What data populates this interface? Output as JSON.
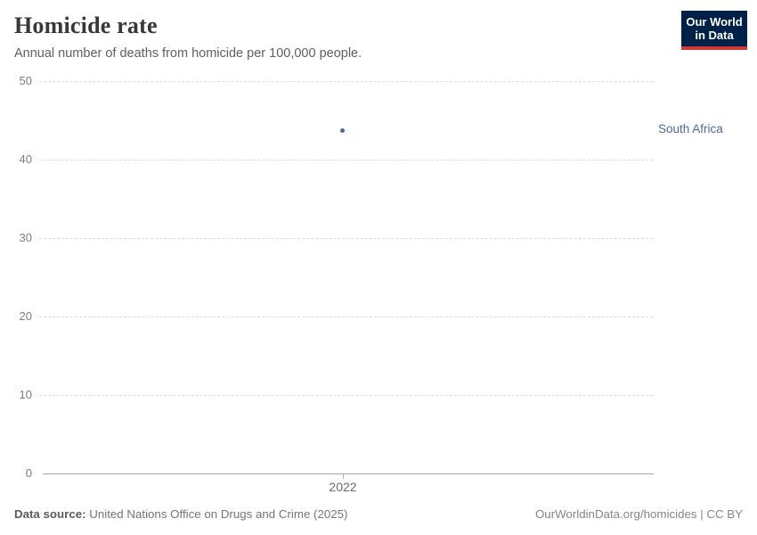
{
  "header": {
    "title": "Homicide rate",
    "subtitle": "Annual number of deaths from homicide per 100,000 people.",
    "logo": {
      "line1": "Our World",
      "line2": "in Data"
    }
  },
  "chart_data": {
    "type": "scatter",
    "title": "Homicide rate",
    "subtitle": "Annual number of deaths from homicide per 100,000 people.",
    "series": [
      {
        "name": "South Africa",
        "x": [
          2022
        ],
        "values": [
          43.7
        ],
        "color": "#4C6A9C"
      }
    ],
    "xlabel": "",
    "ylabel": "",
    "x_ticks": [
      "2022"
    ],
    "y_ticks": [
      0,
      10,
      20,
      30,
      40,
      50
    ],
    "ylim": [
      0,
      50
    ],
    "grid": true,
    "gridline_style": "dashed",
    "legend_position": "right-of-point"
  },
  "footer": {
    "source_label": "Data source:",
    "source_text": " United Nations Office on Drugs and Crime (2025)",
    "attribution": "OurWorldinData.org/homicides | CC BY"
  },
  "colors": {
    "series_blue": "#4C6A9C",
    "logo_background": "#002147",
    "logo_red_bar": "#cf3b32",
    "gridline": "#dcdcdc",
    "axis_line": "#a5a5a5",
    "title_text": "#383838",
    "subtitle_text": "#5f5f5f",
    "tick_text": "#7d7d7d"
  }
}
